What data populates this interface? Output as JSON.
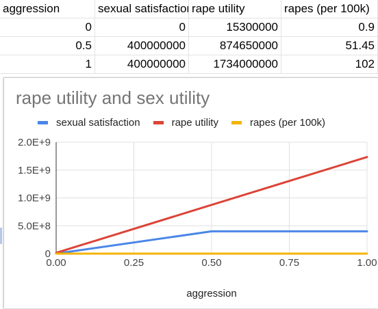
{
  "spreadsheet": {
    "headers": [
      "aggression",
      "sexual satisfaction",
      "rape utility",
      "rapes (per 100k)"
    ],
    "rows": [
      [
        "0",
        "0",
        "15300000",
        "0.9"
      ],
      [
        "0.5",
        "400000000",
        "874650000",
        "51.45"
      ],
      [
        "1",
        "400000000",
        "1734000000",
        "102"
      ]
    ]
  },
  "chart_data": {
    "type": "line",
    "title": "rape utility and sex utility",
    "xlabel": "aggression",
    "ylabel": "",
    "x": [
      0,
      0.5,
      1
    ],
    "xlim": [
      0,
      1
    ],
    "ylim": [
      0,
      2000000000
    ],
    "x_ticks": [
      "0.00",
      "0.25",
      "0.50",
      "0.75",
      "1.00"
    ],
    "y_ticks": [
      "0",
      "5.0E+8",
      "1.0E+9",
      "1.5E+9",
      "2.0E+9"
    ],
    "legend_position": "top",
    "grid": true,
    "series": [
      {
        "name": "sexual satisfaction",
        "color": "#4a86e8",
        "values": [
          0,
          400000000,
          400000000
        ]
      },
      {
        "name": "rape utility",
        "color": "#db4437",
        "values": [
          15300000,
          874650000,
          1734000000
        ]
      },
      {
        "name": "rapes (per 100k)",
        "color": "#f4b400",
        "values": [
          0.9,
          51.45,
          102
        ]
      }
    ]
  }
}
